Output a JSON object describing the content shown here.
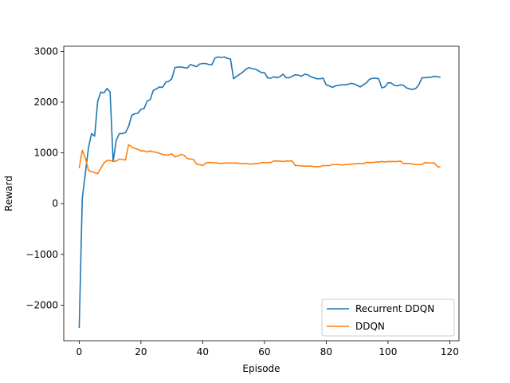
{
  "chart_data": {
    "type": "line",
    "title": "",
    "xlabel": "Episode",
    "ylabel": "Reward",
    "xlim": [
      -5,
      123
    ],
    "ylim": [
      -2700,
      3100
    ],
    "xticks": [
      0,
      20,
      40,
      60,
      80,
      100,
      120
    ],
    "yticks": [
      -2000,
      -1000,
      0,
      1000,
      2000,
      3000
    ],
    "ytick_labels": [
      "−2000",
      "−1000",
      "0",
      "1000",
      "2000",
      "3000"
    ],
    "grid": false,
    "legend_position": "lower-right",
    "series": [
      {
        "name": "Recurrent DDQN",
        "color": "#1f77b4",
        "x": [
          0,
          1,
          2,
          3,
          4,
          5,
          6,
          7,
          8,
          9,
          10,
          11,
          12,
          13,
          14,
          15,
          16,
          17,
          18,
          19,
          20,
          21,
          22,
          23,
          24,
          25,
          26,
          27,
          28,
          29,
          30,
          31,
          32,
          33,
          34,
          35,
          36,
          37,
          38,
          39,
          40,
          41,
          42,
          43,
          44,
          45,
          46,
          47,
          48,
          49,
          50,
          51,
          52,
          53,
          54,
          55,
          56,
          57,
          58,
          59,
          60,
          61,
          62,
          63,
          64,
          65,
          66,
          67,
          68,
          69,
          70,
          71,
          72,
          73,
          74,
          75,
          76,
          77,
          78,
          79,
          80,
          81,
          82,
          83,
          84,
          85,
          86,
          87,
          88,
          89,
          90,
          91,
          92,
          93,
          94,
          95,
          96,
          97,
          98,
          99,
          100,
          101,
          102,
          103,
          104,
          105,
          106,
          107,
          108,
          109,
          110,
          111,
          112,
          113,
          114,
          115,
          116,
          117
        ],
        "values": [
          -2450,
          100,
          600,
          1100,
          1380,
          1330,
          2020,
          2200,
          2180,
          2270,
          2200,
          830,
          1250,
          1380,
          1380,
          1400,
          1520,
          1740,
          1770,
          1780,
          1860,
          1870,
          2020,
          2050,
          2230,
          2260,
          2300,
          2290,
          2390,
          2410,
          2460,
          2680,
          2690,
          2690,
          2680,
          2670,
          2740,
          2720,
          2700,
          2750,
          2760,
          2760,
          2740,
          2740,
          2870,
          2890,
          2880,
          2890,
          2860,
          2850,
          2460,
          2510,
          2550,
          2590,
          2650,
          2680,
          2660,
          2650,
          2620,
          2580,
          2580,
          2480,
          2470,
          2500,
          2480,
          2500,
          2550,
          2480,
          2480,
          2510,
          2540,
          2530,
          2510,
          2550,
          2540,
          2500,
          2480,
          2460,
          2460,
          2470,
          2340,
          2320,
          2290,
          2320,
          2330,
          2340,
          2340,
          2350,
          2370,
          2360,
          2330,
          2300,
          2340,
          2380,
          2450,
          2470,
          2470,
          2460,
          2280,
          2300,
          2380,
          2380,
          2330,
          2320,
          2340,
          2330,
          2280,
          2260,
          2250,
          2270,
          2340,
          2480,
          2480,
          2490,
          2490,
          2510,
          2500,
          2490
        ]
      },
      {
        "name": "DDQN",
        "color": "#ff7f0e",
        "x": [
          0,
          1,
          2,
          3,
          4,
          5,
          6,
          7,
          8,
          9,
          10,
          11,
          12,
          13,
          14,
          15,
          16,
          17,
          18,
          19,
          20,
          21,
          22,
          23,
          24,
          25,
          26,
          27,
          28,
          29,
          30,
          31,
          32,
          33,
          34,
          35,
          36,
          37,
          38,
          39,
          40,
          41,
          42,
          43,
          44,
          45,
          46,
          47,
          48,
          49,
          50,
          51,
          52,
          53,
          54,
          55,
          56,
          57,
          58,
          59,
          60,
          61,
          62,
          63,
          64,
          65,
          66,
          67,
          68,
          69,
          70,
          71,
          72,
          73,
          74,
          75,
          76,
          77,
          78,
          79,
          80,
          81,
          82,
          83,
          84,
          85,
          86,
          87,
          88,
          89,
          90,
          91,
          92,
          93,
          94,
          95,
          96,
          97,
          98,
          99,
          100,
          101,
          102,
          103,
          104,
          105,
          106,
          107,
          108,
          109,
          110,
          111,
          112,
          113,
          114,
          115,
          116,
          117
        ],
        "values": [
          700,
          1050,
          900,
          660,
          630,
          610,
          590,
          700,
          800,
          850,
          850,
          830,
          840,
          880,
          870,
          860,
          1160,
          1120,
          1090,
          1070,
          1040,
          1040,
          1020,
          1040,
          1020,
          1010,
          990,
          970,
          960,
          960,
          980,
          920,
          940,
          970,
          950,
          890,
          880,
          870,
          780,
          770,
          750,
          800,
          810,
          810,
          800,
          800,
          790,
          800,
          800,
          800,
          800,
          800,
          790,
          790,
          790,
          780,
          780,
          790,
          790,
          810,
          810,
          810,
          810,
          840,
          840,
          840,
          830,
          840,
          840,
          840,
          750,
          750,
          740,
          740,
          740,
          740,
          730,
          730,
          730,
          750,
          750,
          750,
          770,
          770,
          770,
          760,
          770,
          770,
          780,
          780,
          790,
          790,
          790,
          810,
          810,
          810,
          820,
          820,
          830,
          820,
          830,
          830,
          830,
          830,
          840,
          790,
          790,
          790,
          780,
          770,
          770,
          770,
          810,
          800,
          800,
          800,
          730,
          720
        ]
      }
    ]
  }
}
